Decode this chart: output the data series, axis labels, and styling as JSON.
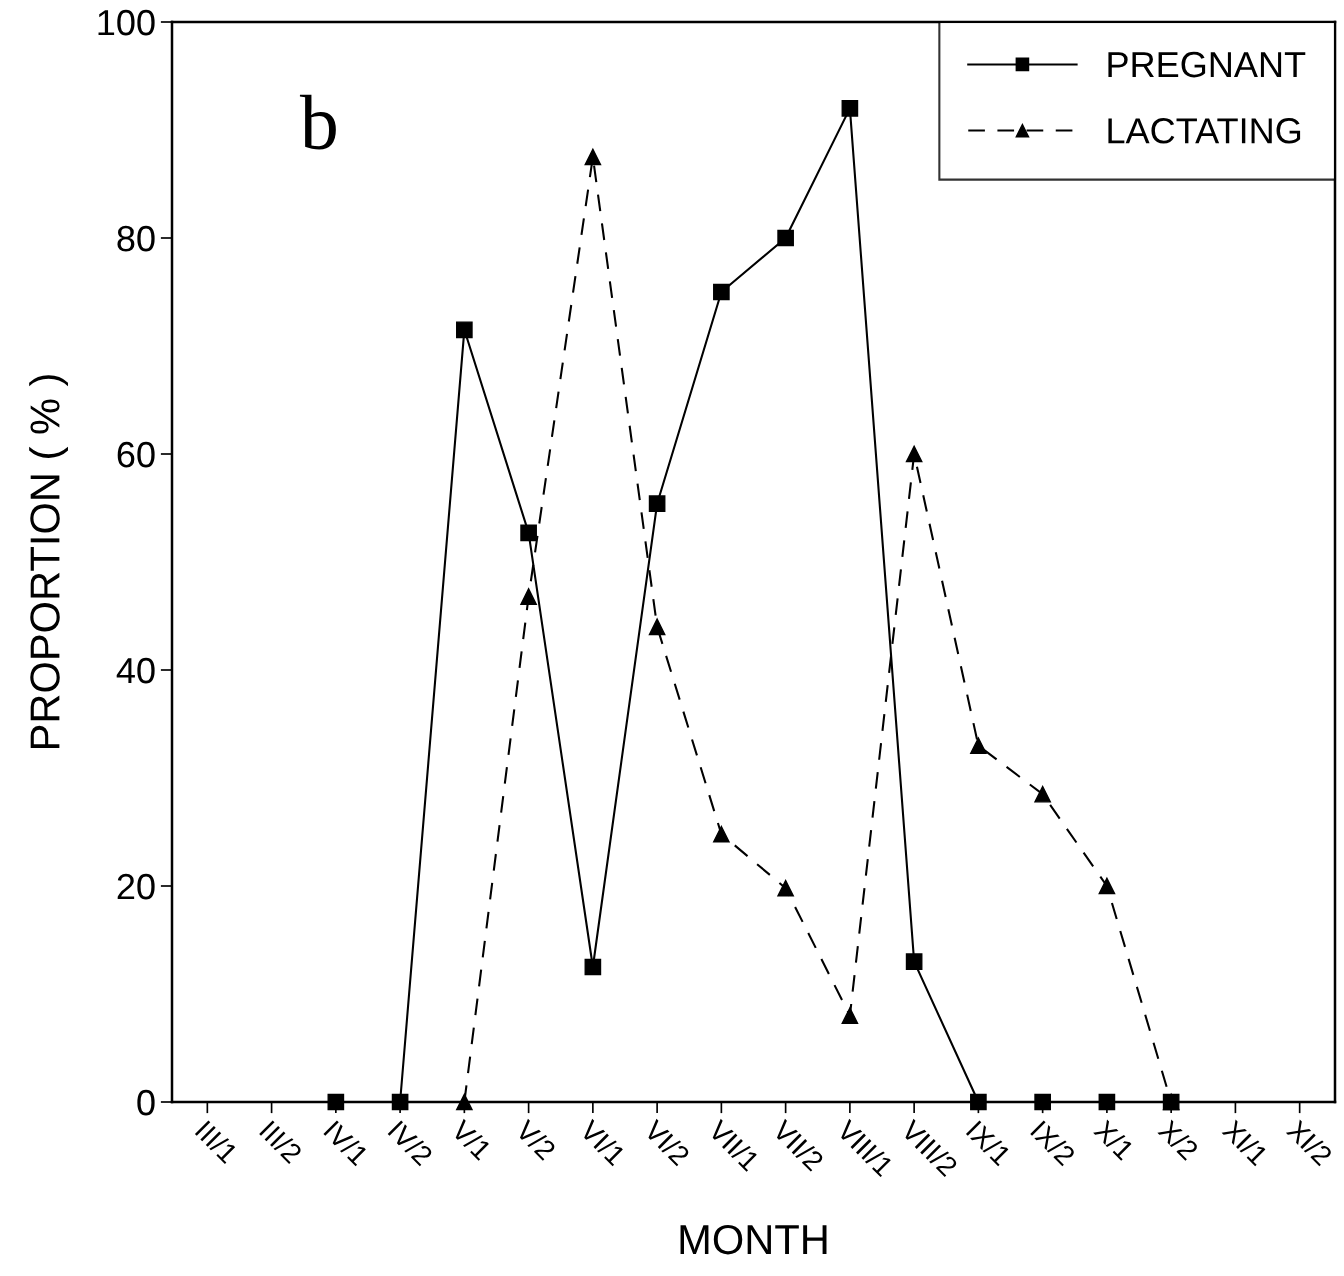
{
  "chart_data": {
    "type": "line",
    "xlabel": "MONTH",
    "ylabel": "PROPORTION ( % )",
    "categories": [
      "III/1",
      "III/2",
      "IV/1",
      "IV/2",
      "V/1",
      "V/2",
      "VI/1",
      "VI/2",
      "VII/1",
      "VII/2",
      "VIII/1",
      "VIII/2",
      "IX/1",
      "IX/2",
      "X/1",
      "X/2",
      "XI/1",
      "XI/2"
    ],
    "series": [
      {
        "name": "PREGNANT",
        "color": "#000000",
        "marker": "square",
        "line_style": "solid",
        "values": [
          null,
          null,
          0,
          0,
          71.5,
          52.7,
          12.5,
          55.4,
          75,
          80,
          92,
          13,
          0,
          0,
          0,
          0,
          null,
          null
        ]
      },
      {
        "name": "LACTATING",
        "color": "#000000",
        "marker": "triangle",
        "line_style": "dashed",
        "values": [
          null,
          null,
          null,
          null,
          0,
          46.8,
          87.5,
          44,
          24.8,
          19.8,
          8,
          60,
          33,
          28.5,
          20,
          0,
          null,
          null
        ]
      }
    ],
    "ylim": [
      0,
      100
    ],
    "yticks": [
      0,
      20,
      40,
      60,
      80,
      100
    ],
    "grid": false,
    "legend": "top right",
    "annotations": [
      "b"
    ]
  }
}
